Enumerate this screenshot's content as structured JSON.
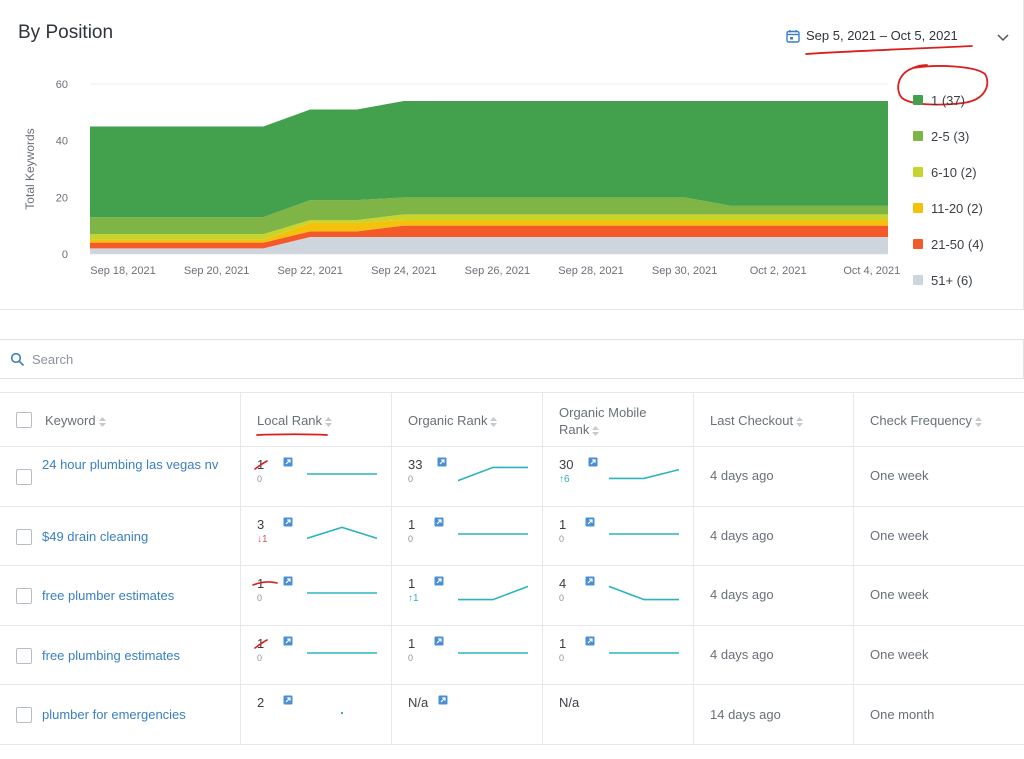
{
  "header": {
    "title": "By Position",
    "date_range": "Sep 5, 2021 – Oct 5, 2021"
  },
  "icons": {
    "calendar": "calendar-icon",
    "dropdown": "chevron-down-icon",
    "search": "search-icon",
    "external": "external-link-icon"
  },
  "chart_data": {
    "type": "area",
    "stacked": true,
    "ylabel": "Total Keywords",
    "ylim": [
      0,
      60
    ],
    "yticks": [
      0,
      20,
      40,
      60
    ],
    "x_ticks": [
      "Sep 18, 2021",
      "Sep 20, 2021",
      "Sep 22, 2021",
      "Sep 24, 2021",
      "Sep 26, 2021",
      "Sep 28, 2021",
      "Sep 30, 2021",
      "Oct 2, 2021",
      "Oct 4, 2021"
    ],
    "x": [
      "Sep 18, 2021",
      "Sep 21, 2021",
      "Sep 22, 2021",
      "Sep 23, 2021",
      "Sep 24, 2021",
      "Sep 25, 2021",
      "Sep 30, 2021",
      "Oct 1, 2021",
      "Oct 4, 2021"
    ],
    "legend_position": "right",
    "grid": true,
    "series": [
      {
        "name": "51+ (6)",
        "color": "#cfd5dd",
        "values": [
          2,
          2,
          6,
          6,
          6,
          6,
          6,
          6,
          6
        ]
      },
      {
        "name": "21-50 (4)",
        "color": "#f4592a",
        "values": [
          2,
          2,
          2,
          2,
          4,
          4,
          4,
          4,
          4
        ]
      },
      {
        "name": "11-20 (2)",
        "color": "#f4c20d",
        "values": [
          1,
          1,
          3,
          3,
          2,
          2,
          2,
          2,
          2
        ]
      },
      {
        "name": "6-10 (2)",
        "color": "#c8d42c",
        "values": [
          2,
          2,
          1,
          1,
          2,
          2,
          2,
          2,
          2
        ]
      },
      {
        "name": "2-5 (3)",
        "color": "#7fb446",
        "values": [
          6,
          6,
          7,
          7,
          6,
          6,
          6,
          3,
          3
        ]
      },
      {
        "name": "1 (37)",
        "color": "#43a04c",
        "values": [
          32,
          32,
          32,
          32,
          34,
          34,
          34,
          37,
          37
        ]
      }
    ]
  },
  "search": {
    "placeholder": "Search"
  },
  "table": {
    "columns": [
      "Keyword",
      "Local Rank",
      "Organic Rank",
      "Organic Mobile Rank",
      "Last Checkout",
      "Check Frequency"
    ],
    "rows": [
      {
        "keyword": "24 hour plumbing las vegas nv",
        "local": "1",
        "local_sub": "0",
        "organic": "33",
        "organic_sub": "0",
        "mobile": "30",
        "mobile_sub": "↑6",
        "checkout": "4 days ago",
        "freq": "One week"
      },
      {
        "keyword": "$49 drain cleaning",
        "local": "3",
        "local_sub": "↓1",
        "organic": "1",
        "organic_sub": "0",
        "mobile": "1",
        "mobile_sub": "0",
        "checkout": "4 days ago",
        "freq": "One week"
      },
      {
        "keyword": "free plumber estimates",
        "local": "1",
        "local_sub": "0",
        "organic": "1",
        "organic_sub": "↑1",
        "mobile": "4",
        "mobile_sub": "0",
        "checkout": "4 days ago",
        "freq": "One week"
      },
      {
        "keyword": "free plumbing estimates",
        "local": "1",
        "local_sub": "0",
        "organic": "1",
        "organic_sub": "0",
        "mobile": "1",
        "mobile_sub": "0",
        "checkout": "4 days ago",
        "freq": "One week"
      },
      {
        "keyword": "plumber for emergencies",
        "local": "2",
        "local_sub": "",
        "organic": "N/a",
        "organic_sub": "",
        "mobile": "N/a",
        "mobile_sub": "",
        "checkout": "14 days ago",
        "freq": "One month"
      }
    ]
  }
}
